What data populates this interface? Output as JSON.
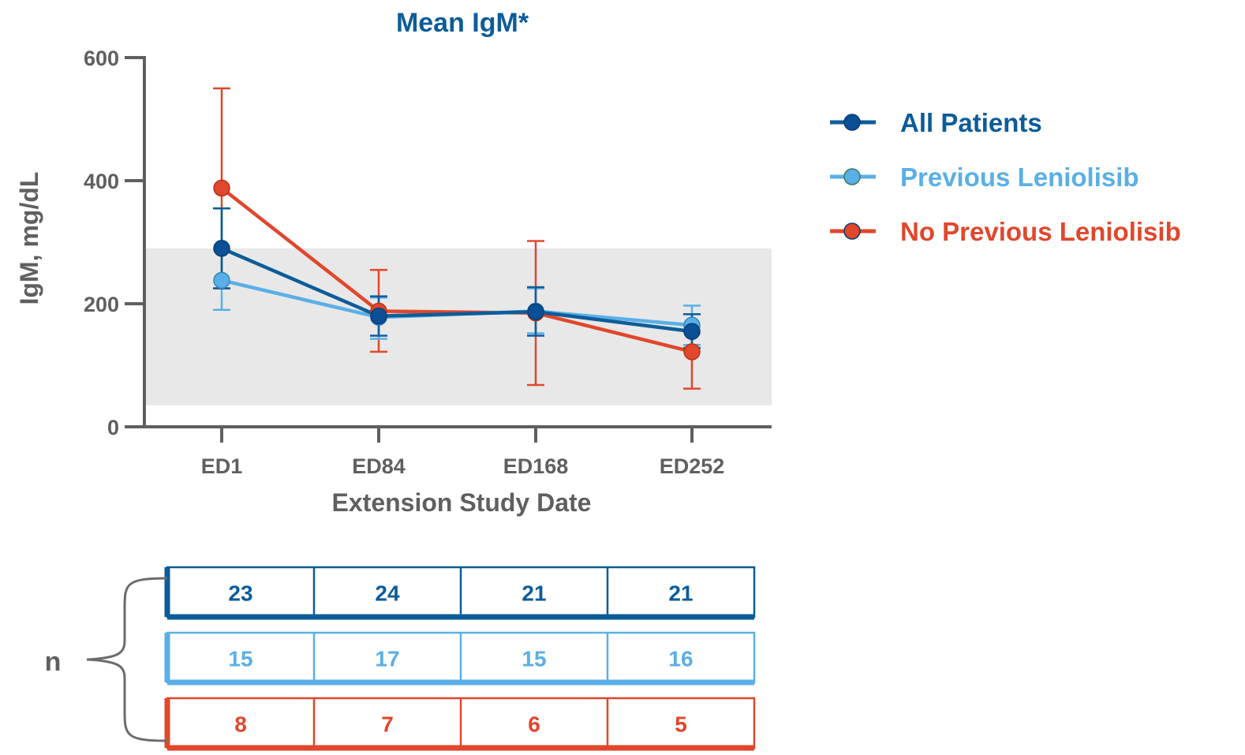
{
  "chart_data": {
    "type": "line",
    "title": "Mean IgM*",
    "xlabel": "Extension Study Date",
    "ylabel": "IgM, mg/dL",
    "categories": [
      "ED1",
      "ED84",
      "ED168",
      "ED252"
    ],
    "ylim": [
      0,
      600
    ],
    "yticks": [
      0,
      200,
      400,
      600
    ],
    "reference_band": [
      35,
      290
    ],
    "series": [
      {
        "name": "All Patients",
        "color": "#0c5c99",
        "marker_color": "#0b4f96",
        "values": [
          290,
          180,
          187,
          155
        ],
        "err_low": [
          225,
          148,
          148,
          128
        ],
        "err_high": [
          355,
          212,
          227,
          183
        ],
        "n": [
          "23",
          "24",
          "21",
          "21"
        ]
      },
      {
        "name": "Previous Leniolisib",
        "color": "#5aafe6",
        "marker_color": "#5aafe6",
        "values": [
          238,
          178,
          188,
          165
        ],
        "err_low": [
          190,
          143,
          152,
          133
        ],
        "err_high": [
          355,
          210,
          225,
          197
        ],
        "n": [
          "15",
          "17",
          "15",
          "16"
        ]
      },
      {
        "name": "No Previous Leniolisib",
        "color": "#e0472c",
        "marker_color": "#e0472c",
        "values": [
          388,
          188,
          185,
          122
        ],
        "err_low": [
          225,
          122,
          68,
          62
        ],
        "err_high": [
          550,
          255,
          302,
          183
        ],
        "n": [
          "8",
          "7",
          "6",
          "5"
        ]
      }
    ],
    "n_label": "n",
    "legend_position": "right",
    "grid": false
  }
}
